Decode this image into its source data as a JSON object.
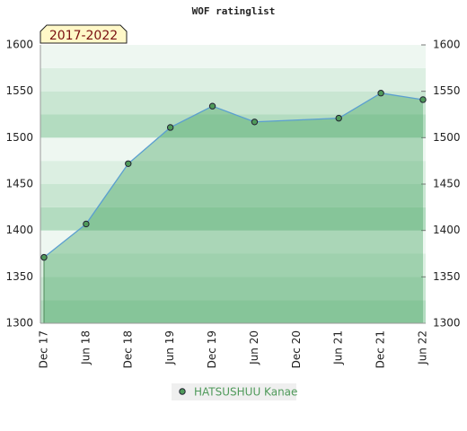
{
  "chart_data": {
    "type": "area",
    "title": "WOF ratinglist",
    "period": "2017-2022",
    "xticks": [
      "Dec 17",
      "Jun 18",
      "Dec 18",
      "Jun 19",
      "Dec 19",
      "Jun 20",
      "Dec 20",
      "Jun 21",
      "Dec 21",
      "Jun 22"
    ],
    "series": [
      {
        "name": "HATSUSHUU Kanae",
        "color": "#4f9a5a",
        "x": [
          "Dec 17",
          "Jun 18",
          "Dec 18",
          "Jun 19",
          "Dec 19",
          "Jun 20",
          "Jun 21",
          "Dec 21",
          "Jun 22"
        ],
        "values": [
          1371,
          1407,
          1472,
          1511,
          1534,
          1517,
          1521,
          1548,
          1541
        ]
      }
    ],
    "ylim": [
      1300,
      1600
    ],
    "yticks": [
      1300,
      1350,
      1400,
      1450,
      1500,
      1550,
      1600
    ],
    "grid": true
  }
}
